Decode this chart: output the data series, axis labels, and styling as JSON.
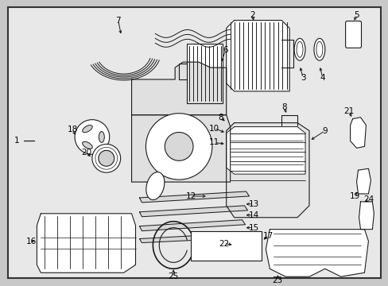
{
  "background_color": "#c8c8c8",
  "diagram_bg": "#e8e8e8",
  "border_color": "#000000",
  "line_color": "#000000",
  "text_color": "#000000",
  "label_fontsize": 7.5,
  "figsize": [
    4.89,
    3.6
  ],
  "dpi": 100
}
